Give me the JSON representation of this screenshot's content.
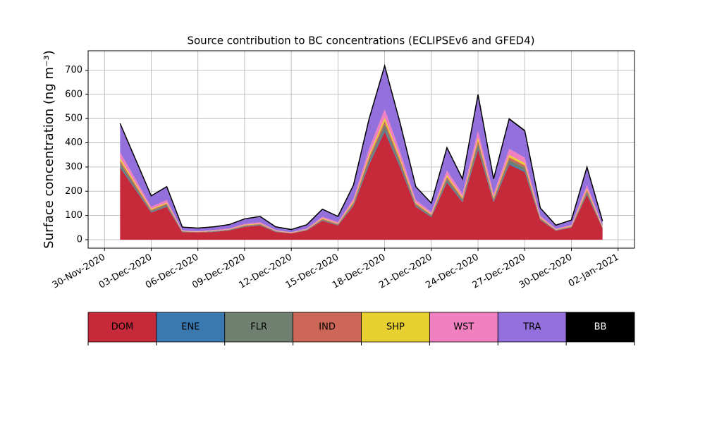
{
  "chart_data": {
    "type": "stacked_area",
    "title": "Source contribution to BC concentrations (ECLIPSEv6 and GFED4)",
    "ylabel": "Surface concentration (ng m⁻³)",
    "x": [
      "2020-12-01",
      "2020-12-02",
      "2020-12-03",
      "2020-12-04",
      "2020-12-05",
      "2020-12-06",
      "2020-12-07",
      "2020-12-08",
      "2020-12-09",
      "2020-12-10",
      "2020-12-11",
      "2020-12-12",
      "2020-12-13",
      "2020-12-14",
      "2020-12-15",
      "2020-12-16",
      "2020-12-17",
      "2020-12-18",
      "2020-12-19",
      "2020-12-20",
      "2020-12-21",
      "2020-12-22",
      "2020-12-23",
      "2020-12-24",
      "2020-12-25",
      "2020-12-26",
      "2020-12-27",
      "2020-12-28",
      "2020-12-29",
      "2020-12-30",
      "2020-12-31",
      "2021-01-01"
    ],
    "series": [
      {
        "name": "DOM",
        "color": "#c62a3a",
        "values": [
          298,
          205,
          112,
          136,
          31,
          30,
          32,
          38,
          53,
          59,
          32,
          26,
          38,
          78,
          59,
          140,
          310,
          446,
          298,
          136,
          93,
          236,
          155,
          372,
          155,
          310,
          279,
          81,
          37,
          50,
          186,
          47
        ]
      },
      {
        "name": "ENE",
        "color": "#3a78b0",
        "values": [
          5,
          3,
          2,
          2,
          1,
          0,
          1,
          1,
          1,
          1,
          1,
          0,
          1,
          1,
          1,
          2,
          5,
          7,
          5,
          2,
          2,
          4,
          3,
          6,
          3,
          5,
          5,
          1,
          1,
          1,
          3,
          1
        ]
      },
      {
        "name": "FLR",
        "color": "#6f8070",
        "values": [
          14,
          10,
          5,
          7,
          2,
          1,
          2,
          2,
          3,
          3,
          2,
          1,
          2,
          4,
          3,
          7,
          15,
          22,
          14,
          7,
          5,
          11,
          8,
          18,
          8,
          15,
          14,
          4,
          2,
          2,
          9,
          2
        ]
      },
      {
        "name": "IND",
        "color": "#cc6657",
        "values": [
          10,
          7,
          4,
          4,
          1,
          1,
          1,
          1,
          2,
          2,
          1,
          1,
          1,
          3,
          2,
          5,
          10,
          14,
          10,
          4,
          3,
          8,
          5,
          12,
          5,
          10,
          9,
          3,
          1,
          2,
          6,
          2
        ]
      },
      {
        "name": "SHP",
        "color": "#e8d030",
        "values": [
          10,
          7,
          4,
          4,
          1,
          1,
          1,
          1,
          2,
          2,
          1,
          1,
          1,
          3,
          2,
          5,
          10,
          14,
          10,
          4,
          3,
          8,
          5,
          12,
          5,
          10,
          9,
          3,
          1,
          2,
          6,
          2
        ]
      },
      {
        "name": "WST",
        "color": "#f080c0",
        "values": [
          24,
          17,
          9,
          11,
          3,
          2,
          3,
          3,
          4,
          5,
          3,
          2,
          3,
          6,
          5,
          11,
          25,
          36,
          24,
          11,
          8,
          19,
          13,
          30,
          13,
          25,
          23,
          7,
          3,
          4,
          15,
          4
        ]
      },
      {
        "name": "TRA",
        "color": "#9370db",
        "values": [
          115,
          79,
          43,
          53,
          12,
          12,
          12,
          15,
          20,
          23,
          12,
          10,
          15,
          30,
          23,
          54,
          120,
          173,
          115,
          53,
          36,
          91,
          60,
          144,
          60,
          120,
          108,
          31,
          14,
          19,
          72,
          18
        ]
      },
      {
        "name": "BB",
        "color": "#000000",
        "values": [
          4,
          3,
          2,
          2,
          1,
          1,
          1,
          1,
          1,
          1,
          1,
          1,
          1,
          1,
          1,
          2,
          4,
          6,
          4,
          2,
          1,
          3,
          2,
          5,
          2,
          4,
          4,
          1,
          1,
          1,
          3,
          1
        ]
      }
    ],
    "xlim": [
      "2020-11-30",
      "2021-01-02"
    ],
    "xticks": [
      {
        "value": "2020-11-30",
        "label": "30-Nov-2020"
      },
      {
        "value": "2020-12-03",
        "label": "03-Dec-2020"
      },
      {
        "value": "2020-12-06",
        "label": "06-Dec-2020"
      },
      {
        "value": "2020-12-09",
        "label": "09-Dec-2020"
      },
      {
        "value": "2020-12-12",
        "label": "12-Dec-2020"
      },
      {
        "value": "2020-12-15",
        "label": "15-Dec-2020"
      },
      {
        "value": "2020-12-18",
        "label": "18-Dec-2020"
      },
      {
        "value": "2020-12-21",
        "label": "21-Dec-2020"
      },
      {
        "value": "2020-12-24",
        "label": "24-Dec-2020"
      },
      {
        "value": "2020-12-27",
        "label": "27-Dec-2020"
      },
      {
        "value": "2020-12-30",
        "label": "30-Dec-2020"
      },
      {
        "value": "2021-01-02",
        "label": "02-Jan-2021"
      }
    ],
    "ylim": [
      -35,
      780
    ],
    "yticks": [
      0,
      100,
      200,
      300,
      400,
      500,
      600,
      700
    ],
    "grid": true
  }
}
